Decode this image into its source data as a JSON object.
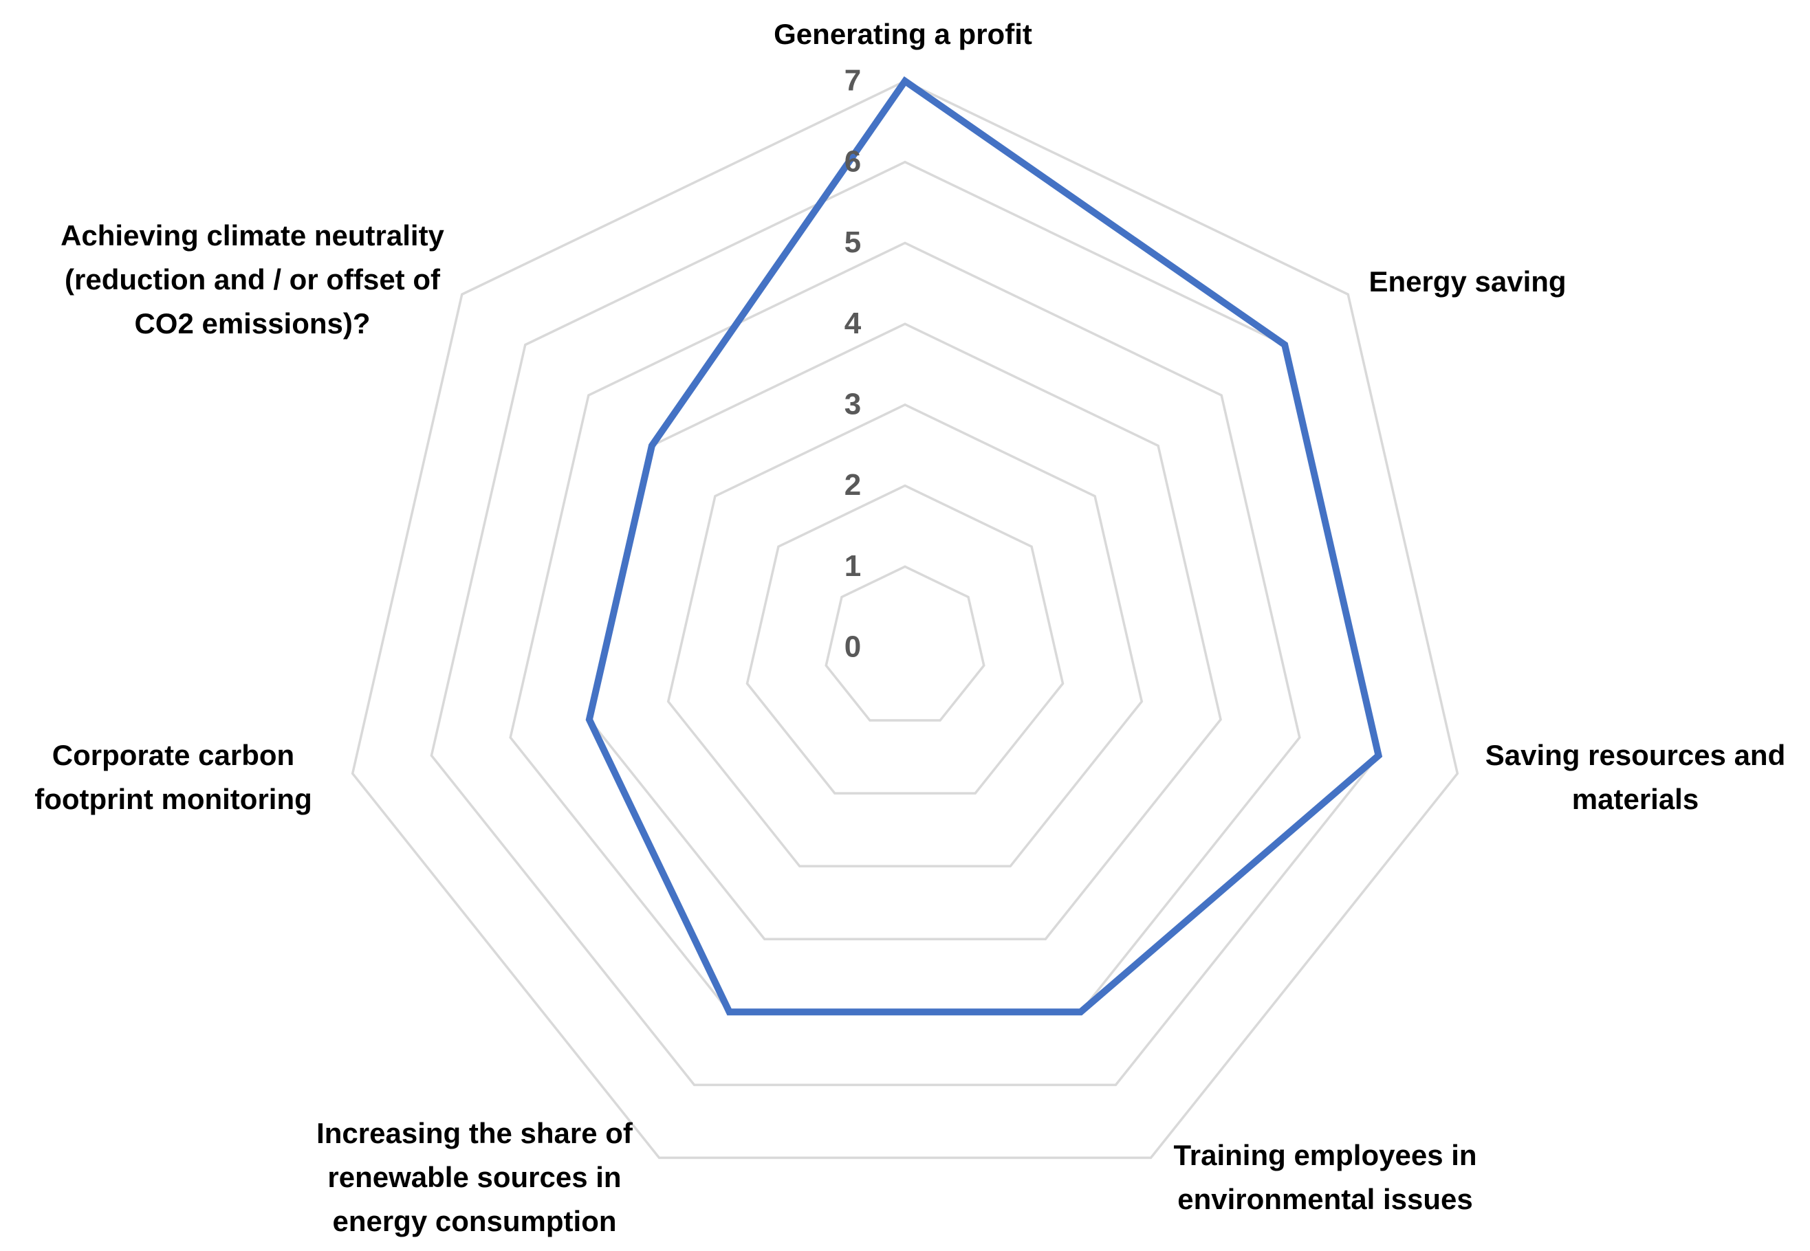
{
  "chart_data": {
    "type": "radar",
    "categories": [
      "Generating a profit",
      "Energy saving",
      "Saving resources and materials",
      "Training employees in environmental issues",
      "Increasing the share of renewable sources in energy consumption",
      "Corporate carbon footprint monitoring",
      "Achieving climate neutrality (reduction and / or offset of CO2 emissions)?"
    ],
    "values": [
      7,
      6,
      6,
      5,
      5,
      4,
      4
    ],
    "color": "#4472c4",
    "ylim": [
      0,
      7
    ],
    "yticks": [
      0,
      1,
      2,
      3,
      4,
      5,
      6,
      7
    ],
    "grid": true
  }
}
